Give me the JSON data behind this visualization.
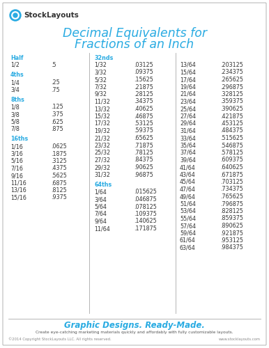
{
  "title_line1": "Decimal Equivalents for",
  "title_line2": "Fractions of an Inch",
  "title_color": "#29abe2",
  "background_color": "#ffffff",
  "border_color": "#bbbbbb",
  "text_color": "#333333",
  "header_color": "#29abe2",
  "logo_text": "StockLayouts",
  "footer_tagline": "Graphic Designs. Ready-Made.",
  "footer_sub": "Create eye-catching marketing materials quickly and affordably with fully customizable layouts.",
  "footer_copy": "©2014 Copyright StockLayouts LLC. All rights reserved.",
  "footer_url": "www.stocklayouts.com",
  "col1_header": "Half",
  "col1_data": [
    [
      "1/2",
      ".5"
    ]
  ],
  "col2_header": "4ths",
  "col2_data": [
    [
      "1/4",
      ".25"
    ],
    [
      "3/4",
      ".75"
    ]
  ],
  "col3_header": "8ths",
  "col3_data": [
    [
      "1/8",
      ".125"
    ],
    [
      "3/8",
      ".375"
    ],
    [
      "5/8",
      ".625"
    ],
    [
      "7/8",
      ".875"
    ]
  ],
  "col4_header": "16ths",
  "col4_data": [
    [
      "1/16",
      ".0625"
    ],
    [
      "3/16",
      ".1875"
    ],
    [
      "5/16",
      ".3125"
    ],
    [
      "7/16",
      ".4375"
    ],
    [
      "9/16",
      ".5625"
    ],
    [
      "11/16",
      ".6875"
    ],
    [
      "13/16",
      ".8125"
    ],
    [
      "15/16",
      ".9375"
    ]
  ],
  "col5_header": "32nds",
  "col5_data": [
    [
      "1/32",
      ".03125"
    ],
    [
      "3/32",
      ".09375"
    ],
    [
      "5/32",
      ".15625"
    ],
    [
      "7/32",
      ".21875"
    ],
    [
      "9/32",
      ".28125"
    ],
    [
      "11/32",
      ".34375"
    ],
    [
      "13/32",
      ".40625"
    ],
    [
      "15/32",
      ".46875"
    ],
    [
      "17/32",
      ".53125"
    ],
    [
      "19/32",
      ".59375"
    ],
    [
      "21/32",
      ".65625"
    ],
    [
      "23/32",
      ".71875"
    ],
    [
      "25/32",
      ".78125"
    ],
    [
      "27/32",
      ".84375"
    ],
    [
      "29/32",
      ".90625"
    ],
    [
      "31/32",
      ".96875"
    ]
  ],
  "col6_header": "64ths",
  "col6_data": [
    [
      "1/64",
      ".015625"
    ],
    [
      "3/64",
      ".046875"
    ],
    [
      "5/64",
      ".078125"
    ],
    [
      "7/64",
      ".109375"
    ],
    [
      "9/64",
      ".140625"
    ],
    [
      "11/64",
      ".171875"
    ]
  ],
  "col7_data": [
    [
      "13/64",
      ".203125"
    ],
    [
      "15/64",
      ".234375"
    ],
    [
      "17/64",
      ".265625"
    ],
    [
      "19/64",
      ".296875"
    ],
    [
      "21/64",
      ".328125"
    ],
    [
      "23/64",
      ".359375"
    ],
    [
      "25/64",
      ".390625"
    ],
    [
      "27/64",
      ".421875"
    ],
    [
      "29/64",
      ".453125"
    ],
    [
      "31/64",
      ".484375"
    ],
    [
      "33/64",
      ".515625"
    ],
    [
      "35/64",
      ".546875"
    ],
    [
      "37/64",
      ".578125"
    ],
    [
      "39/64",
      ".609375"
    ],
    [
      "41/64",
      ".640625"
    ],
    [
      "43/64",
      ".671875"
    ],
    [
      "45/64",
      ".703125"
    ],
    [
      "47/64",
      ".734375"
    ],
    [
      "49/64",
      ".765625"
    ],
    [
      "51/64",
      ".796875"
    ],
    [
      "53/64",
      ".828125"
    ],
    [
      "55/64",
      ".859375"
    ],
    [
      "57/64",
      ".890625"
    ],
    [
      "59/64",
      ".921875"
    ],
    [
      "61/64",
      ".953125"
    ],
    [
      "63/64",
      ".984375"
    ]
  ]
}
